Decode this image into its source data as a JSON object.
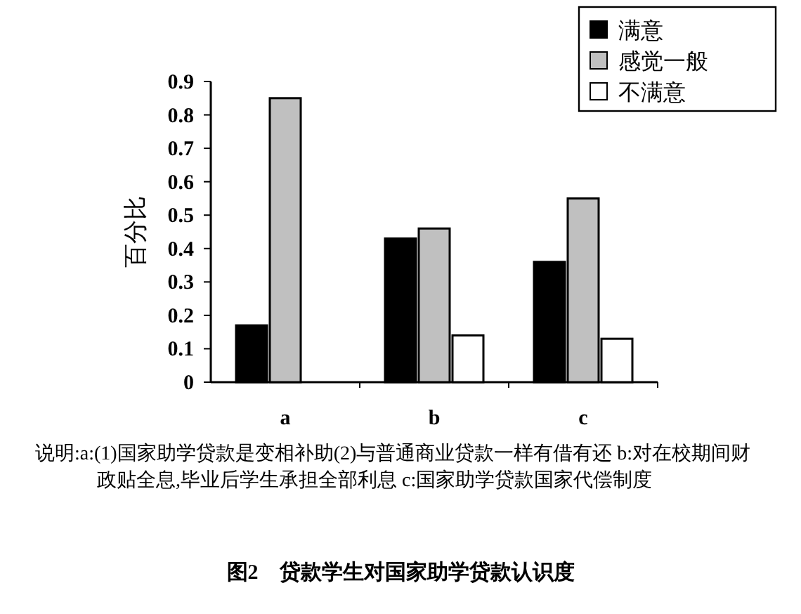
{
  "chart_data": {
    "type": "bar",
    "title": "图2　贷款学生对国家助学贷款认识度",
    "ylabel": "百分比",
    "categories": [
      "a",
      "b",
      "c"
    ],
    "series": [
      {
        "name": "满意",
        "color": "#000000",
        "values": [
          0.17,
          0.43,
          0.36
        ]
      },
      {
        "name": "感觉一般",
        "color": "#c0c0c0",
        "values": [
          0.85,
          0.46,
          0.55
        ]
      },
      {
        "name": "不满意",
        "color": "#ffffff",
        "values": [
          0,
          0.14,
          0.13
        ]
      }
    ],
    "ylim": [
      0,
      0.9
    ],
    "yticks": [
      0,
      0.1,
      0.2,
      0.3,
      0.4,
      0.5,
      0.6,
      0.7,
      0.8,
      0.9
    ],
    "legend": "top right",
    "grid": false,
    "annotations": [
      "说明:a:(1)国家助学贷款是变相补助(2)与普通商业贷款一样有借有还 b:对在校期间财政贴全息,毕业后学生承担全部利息 c:国家助学贷款国家代偿制度"
    ]
  }
}
